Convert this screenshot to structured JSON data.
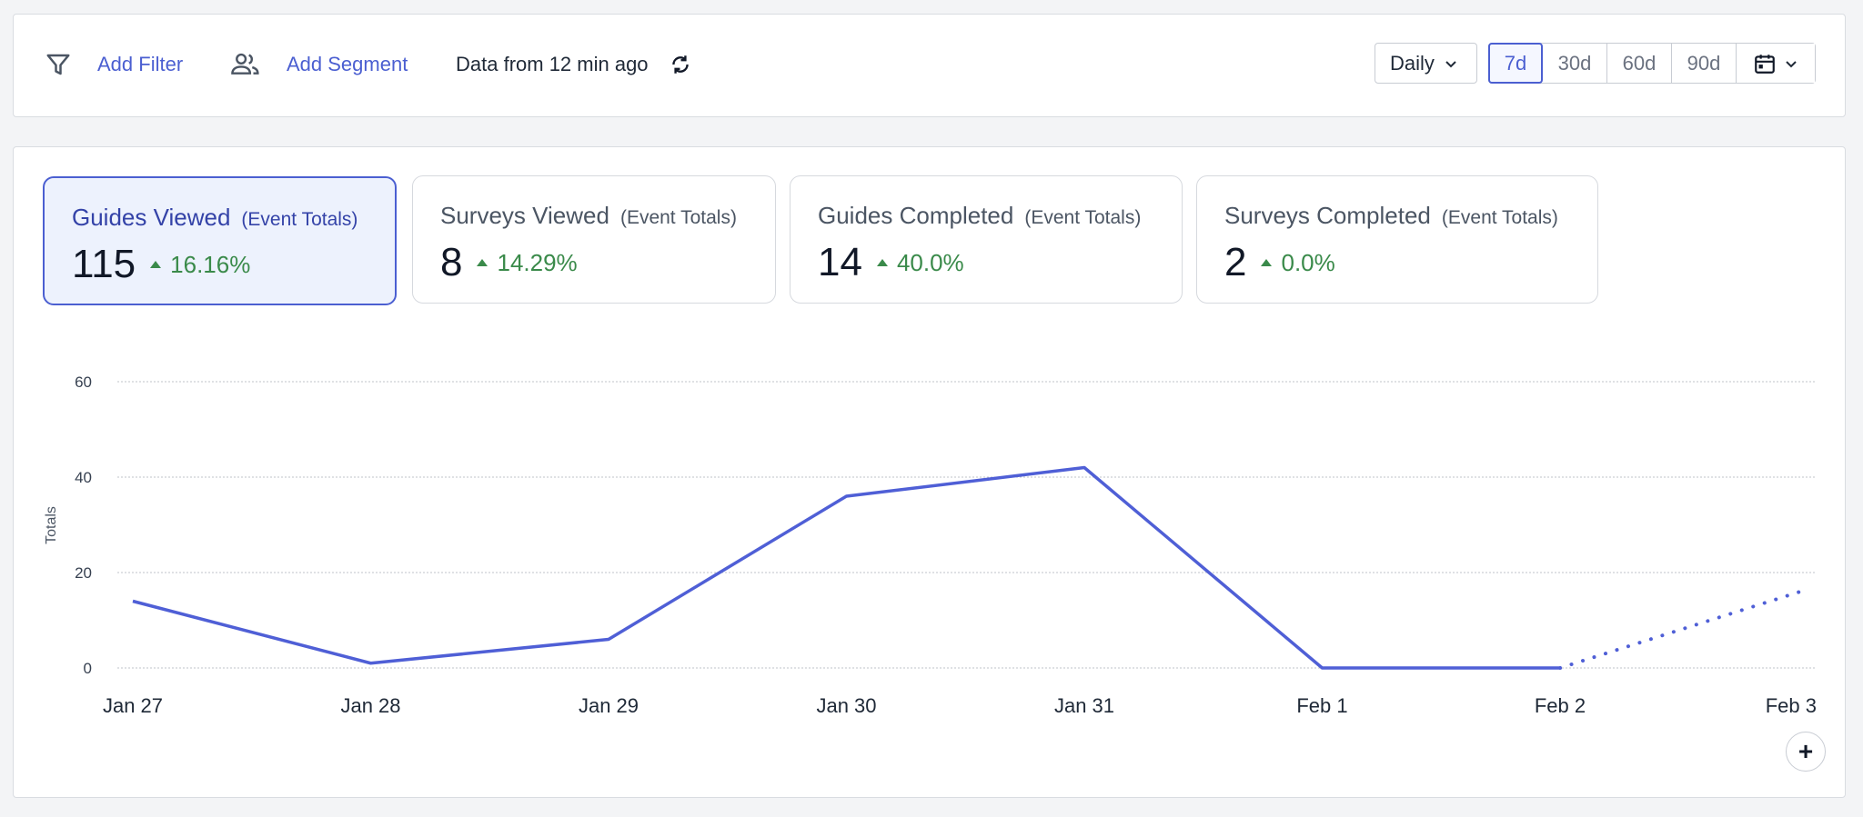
{
  "toolbar": {
    "filter_icon": "filter-icon",
    "add_filter": "Add Filter",
    "segment_icon": "people-icon",
    "add_segment": "Add Segment",
    "data_freshness": "Data from 12 min ago",
    "refresh_icon": "refresh-icon",
    "interval": "Daily",
    "ranges": [
      "7d",
      "30d",
      "60d",
      "90d"
    ],
    "active_range": "7d",
    "calendar_icon": "calendar-icon"
  },
  "cards": [
    {
      "title": "Guides Viewed",
      "sub": "(Event Totals)",
      "value": "115",
      "delta": "16.16%"
    },
    {
      "title": "Surveys Viewed",
      "sub": "(Event Totals)",
      "value": "8",
      "delta": "14.29%"
    },
    {
      "title": "Guides Completed",
      "sub": "(Event Totals)",
      "value": "14",
      "delta": "40.0%"
    },
    {
      "title": "Surveys Completed",
      "sub": "(Event Totals)",
      "value": "2",
      "delta": "0.0%"
    }
  ],
  "colors": {
    "accent": "#4b5fd1",
    "positive": "#3a8a4a"
  },
  "chart_data": {
    "type": "line",
    "title": "",
    "xlabel": "",
    "ylabel": "Totals",
    "categories": [
      "Jan 27",
      "Jan 28",
      "Jan 29",
      "Jan 30",
      "Jan 31",
      "Feb 1",
      "Feb 2",
      "Feb 3"
    ],
    "series": [
      {
        "name": "",
        "values": [
          14,
          1,
          6,
          36,
          42,
          0,
          0,
          16
        ],
        "projected_from_index": 6
      }
    ],
    "yticks": [
      0,
      20,
      40,
      60
    ],
    "ylim": [
      0,
      60
    ],
    "grid": true
  },
  "chart_actions": {
    "add": "+"
  }
}
